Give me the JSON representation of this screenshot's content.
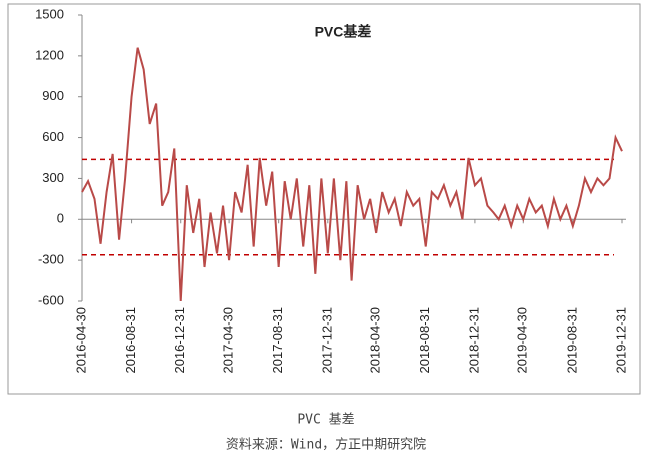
{
  "chart_data": {
    "type": "line",
    "title": "PVC基差",
    "caption": "PVC 基差",
    "source": "资料来源：Wind，方正中期研究院",
    "x": [
      "2016-04-30",
      "2016-05-15",
      "2016-05-31",
      "2016-06-15",
      "2016-06-30",
      "2016-07-15",
      "2016-07-31",
      "2016-08-15",
      "2016-08-31",
      "2016-09-15",
      "2016-09-30",
      "2016-10-15",
      "2016-10-31",
      "2016-11-15",
      "2016-11-30",
      "2016-12-15",
      "2016-12-31",
      "2017-01-15",
      "2017-01-31",
      "2017-02-15",
      "2017-02-28",
      "2017-03-15",
      "2017-03-31",
      "2017-04-15",
      "2017-04-30",
      "2017-05-15",
      "2017-05-31",
      "2017-06-15",
      "2017-06-30",
      "2017-07-15",
      "2017-07-31",
      "2017-08-15",
      "2017-08-31",
      "2017-09-15",
      "2017-09-30",
      "2017-10-15",
      "2017-10-31",
      "2017-11-15",
      "2017-11-30",
      "2017-12-15",
      "2017-12-31",
      "2018-01-15",
      "2018-01-31",
      "2018-02-15",
      "2018-02-28",
      "2018-03-15",
      "2018-03-31",
      "2018-04-15",
      "2018-04-30",
      "2018-05-15",
      "2018-05-31",
      "2018-06-15",
      "2018-06-30",
      "2018-07-15",
      "2018-07-31",
      "2018-08-15",
      "2018-08-31",
      "2018-09-15",
      "2018-09-30",
      "2018-10-15",
      "2018-10-31",
      "2018-11-15",
      "2018-11-30",
      "2018-12-15",
      "2018-12-31",
      "2019-01-15",
      "2019-01-31",
      "2019-02-15",
      "2019-02-28",
      "2019-03-15",
      "2019-03-31",
      "2019-04-15",
      "2019-04-30",
      "2019-05-15",
      "2019-05-31",
      "2019-06-15",
      "2019-06-30",
      "2019-07-15",
      "2019-07-31",
      "2019-08-15",
      "2019-08-31",
      "2019-09-15",
      "2019-09-30",
      "2019-10-15",
      "2019-10-31",
      "2019-11-15",
      "2019-11-30",
      "2019-12-15",
      "2019-12-31"
    ],
    "series": [
      {
        "name": "PVC基差",
        "color": "#b94a48",
        "values": [
          200,
          280,
          150,
          -180,
          200,
          480,
          -150,
          300,
          900,
          1260,
          1100,
          700,
          850,
          100,
          200,
          520,
          -600,
          250,
          -100,
          150,
          -350,
          50,
          -250,
          100,
          -300,
          200,
          50,
          400,
          -200,
          450,
          100,
          350,
          -350,
          280,
          0,
          300,
          -200,
          250,
          -400,
          300,
          -250,
          300,
          -300,
          280,
          -450,
          250,
          0,
          150,
          -100,
          200,
          50,
          150,
          -50,
          200,
          100,
          150,
          -200,
          200,
          150,
          250,
          100,
          200,
          0,
          450,
          250,
          300,
          100,
          50,
          0,
          100,
          -50,
          100,
          0,
          150,
          50,
          100,
          -50,
          150,
          0,
          100,
          -50,
          100,
          300,
          200,
          300,
          250,
          300,
          600,
          500
        ]
      }
    ],
    "hlines": [
      {
        "value": 440,
        "color": "#c00000"
      },
      {
        "value": -260,
        "color": "#c00000"
      }
    ],
    "xlim": [
      "2016-04-30",
      "2019-12-31"
    ],
    "xticks": [
      "2016-04-30",
      "2016-08-31",
      "2016-12-31",
      "2017-04-30",
      "2017-08-31",
      "2017-12-31",
      "2018-04-30",
      "2018-08-31",
      "2018-12-31",
      "2019-04-30",
      "2019-08-31",
      "2019-12-31"
    ],
    "ylim": [
      -600,
      1500
    ],
    "yticks": [
      -600,
      -300,
      0,
      300,
      600,
      900,
      1200,
      1500
    ]
  }
}
